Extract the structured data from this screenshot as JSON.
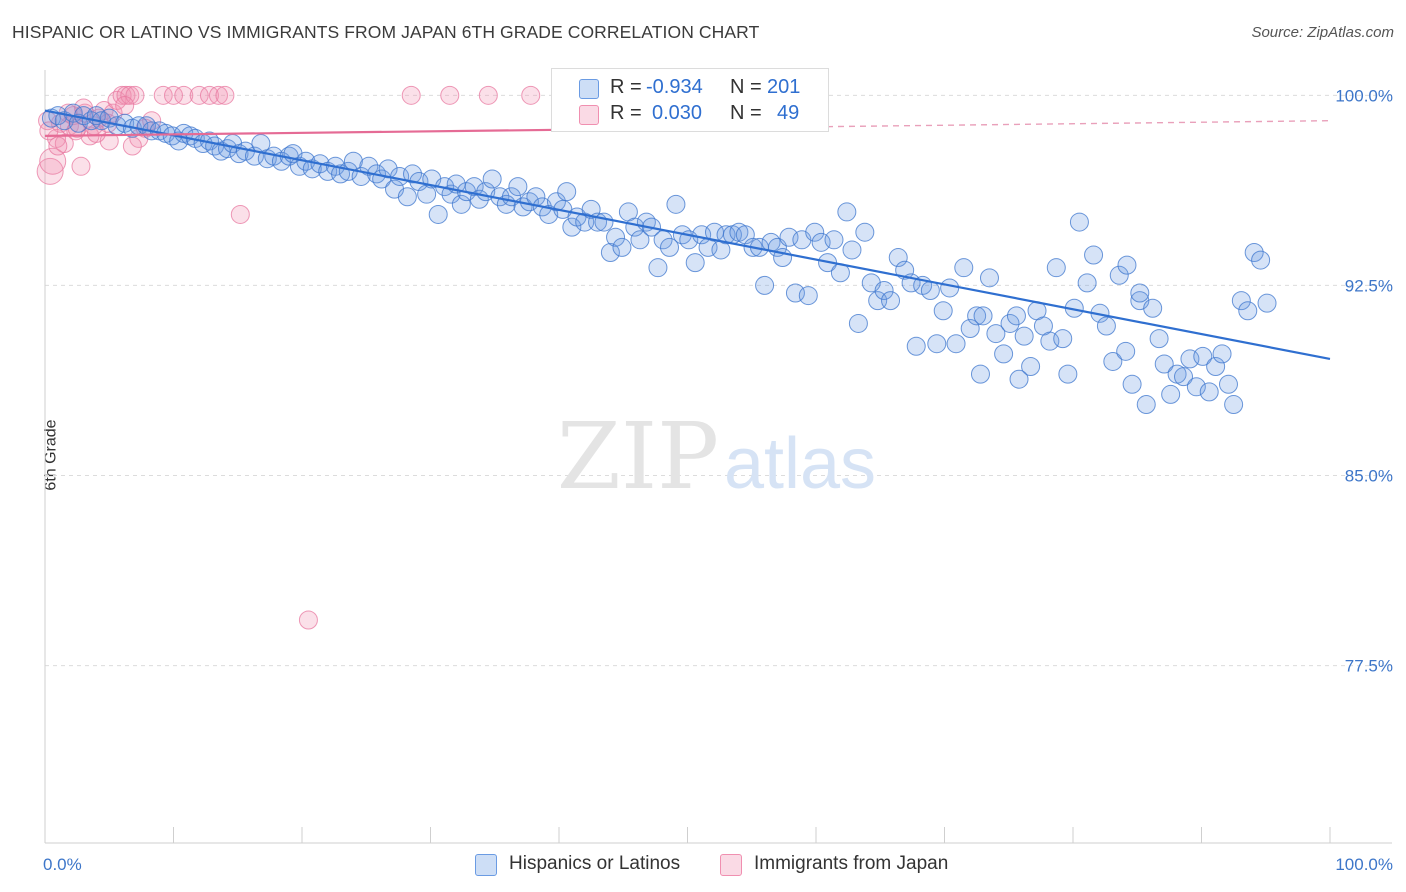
{
  "title": "HISPANIC OR LATINO VS IMMIGRANTS FROM JAPAN 6TH GRADE CORRELATION CHART",
  "source": "Source: ZipAtlas.com",
  "watermark": {
    "zip": "ZIP",
    "atlas": "atlas"
  },
  "legend": {
    "rows": [
      {
        "r_label": "R =",
        "r_value": "-0.934",
        "n_label": "N =",
        "n_value": "201",
        "color": "#6a9be3"
      },
      {
        "r_label": "R =",
        "r_value": "0.030",
        "n_label": "N =",
        "n_value": "49",
        "color": "#f08fb0"
      }
    ]
  },
  "chart_data": {
    "type": "scatter",
    "title": "HISPANIC OR LATINO VS IMMIGRANTS FROM JAPAN 6TH GRADE CORRELATION CHART",
    "xlabel": "",
    "ylabel": "6th Grade",
    "xlim": [
      0,
      100
    ],
    "ylim": [
      70.5,
      101.0
    ],
    "x_tick_labels": [
      "0.0%",
      "100.0%"
    ],
    "y_ticks": [
      77.5,
      85.0,
      92.5,
      100.0
    ],
    "y_tick_labels": [
      "77.5%",
      "85.0%",
      "92.5%",
      "100.0%"
    ],
    "grid": true,
    "legend_position": "bottom-center",
    "series": [
      {
        "name": "Hispanics or Latinos",
        "color": "#6a9be3",
        "r": -0.934,
        "n": 201,
        "trend": {
          "x": [
            0,
            100
          ],
          "y": [
            99.4,
            89.6
          ]
        },
        "points": [
          [
            0.5,
            99.1
          ],
          [
            1.0,
            99.2
          ],
          [
            1.5,
            99.0
          ],
          [
            2.2,
            99.3
          ],
          [
            2.6,
            98.9
          ],
          [
            3.0,
            99.2
          ],
          [
            3.6,
            99.0
          ],
          [
            4.0,
            99.2
          ],
          [
            4.4,
            99.0
          ],
          [
            5.0,
            99.1
          ],
          [
            5.6,
            98.8
          ],
          [
            6.2,
            98.9
          ],
          [
            6.8,
            98.7
          ],
          [
            7.3,
            98.8
          ],
          [
            7.9,
            98.8
          ],
          [
            8.3,
            98.6
          ],
          [
            8.9,
            98.6
          ],
          [
            9.4,
            98.5
          ],
          [
            9.9,
            98.4
          ],
          [
            10.4,
            98.2
          ],
          [
            10.8,
            98.5
          ],
          [
            11.3,
            98.4
          ],
          [
            11.7,
            98.3
          ],
          [
            12.3,
            98.1
          ],
          [
            12.8,
            98.2
          ],
          [
            13.2,
            98.0
          ],
          [
            13.7,
            97.8
          ],
          [
            14.2,
            97.9
          ],
          [
            14.6,
            98.1
          ],
          [
            15.1,
            97.7
          ],
          [
            15.6,
            97.8
          ],
          [
            16.3,
            97.6
          ],
          [
            16.8,
            98.1
          ],
          [
            17.3,
            97.5
          ],
          [
            17.8,
            97.6
          ],
          [
            18.4,
            97.4
          ],
          [
            19.0,
            97.6
          ],
          [
            19.3,
            97.7
          ],
          [
            19.8,
            97.2
          ],
          [
            20.3,
            97.4
          ],
          [
            20.8,
            97.1
          ],
          [
            21.4,
            97.3
          ],
          [
            22.0,
            97.0
          ],
          [
            22.6,
            97.2
          ],
          [
            23.0,
            96.9
          ],
          [
            23.6,
            97.0
          ],
          [
            24.0,
            97.4
          ],
          [
            24.6,
            96.8
          ],
          [
            25.2,
            97.2
          ],
          [
            25.8,
            96.9
          ],
          [
            26.2,
            96.7
          ],
          [
            26.7,
            97.1
          ],
          [
            27.2,
            96.3
          ],
          [
            27.6,
            96.8
          ],
          [
            28.2,
            96.0
          ],
          [
            28.6,
            96.9
          ],
          [
            29.1,
            96.6
          ],
          [
            29.7,
            96.1
          ],
          [
            30.1,
            96.7
          ],
          [
            30.6,
            95.3
          ],
          [
            31.1,
            96.4
          ],
          [
            31.6,
            96.1
          ],
          [
            32.0,
            96.5
          ],
          [
            32.4,
            95.7
          ],
          [
            32.8,
            96.2
          ],
          [
            33.4,
            96.4
          ],
          [
            33.8,
            95.9
          ],
          [
            34.3,
            96.2
          ],
          [
            34.8,
            96.7
          ],
          [
            35.4,
            96.0
          ],
          [
            35.9,
            95.7
          ],
          [
            36.3,
            96.0
          ],
          [
            36.8,
            96.4
          ],
          [
            37.2,
            95.6
          ],
          [
            37.7,
            95.8
          ],
          [
            38.2,
            96.0
          ],
          [
            38.7,
            95.6
          ],
          [
            39.2,
            95.3
          ],
          [
            39.8,
            95.8
          ],
          [
            40.3,
            95.5
          ],
          [
            40.6,
            96.2
          ],
          [
            41.0,
            94.8
          ],
          [
            41.4,
            95.2
          ],
          [
            42.0,
            95.0
          ],
          [
            42.5,
            95.5
          ],
          [
            43.0,
            95.0
          ],
          [
            43.5,
            95.0
          ],
          [
            44.0,
            93.8
          ],
          [
            44.4,
            94.4
          ],
          [
            44.9,
            94.0
          ],
          [
            45.4,
            95.4
          ],
          [
            45.9,
            94.8
          ],
          [
            46.3,
            94.3
          ],
          [
            46.8,
            95.0
          ],
          [
            47.2,
            94.8
          ],
          [
            47.7,
            93.2
          ],
          [
            48.1,
            94.3
          ],
          [
            48.6,
            94.0
          ],
          [
            49.1,
            95.7
          ],
          [
            49.6,
            94.5
          ],
          [
            50.1,
            94.3
          ],
          [
            50.6,
            93.4
          ],
          [
            51.1,
            94.5
          ],
          [
            51.6,
            94.0
          ],
          [
            52.1,
            94.6
          ],
          [
            52.6,
            93.9
          ],
          [
            53.0,
            94.5
          ],
          [
            53.5,
            94.5
          ],
          [
            54.0,
            94.6
          ],
          [
            54.5,
            94.5
          ],
          [
            55.1,
            94.0
          ],
          [
            55.6,
            94.0
          ],
          [
            56.0,
            92.5
          ],
          [
            56.5,
            94.2
          ],
          [
            57.0,
            94.0
          ],
          [
            57.4,
            93.6
          ],
          [
            57.9,
            94.4
          ],
          [
            58.4,
            92.2
          ],
          [
            58.9,
            94.3
          ],
          [
            59.4,
            92.1
          ],
          [
            59.9,
            94.6
          ],
          [
            60.4,
            94.2
          ],
          [
            60.9,
            93.4
          ],
          [
            61.4,
            94.3
          ],
          [
            61.9,
            93.0
          ],
          [
            62.4,
            95.4
          ],
          [
            62.8,
            93.9
          ],
          [
            63.3,
            91.0
          ],
          [
            63.8,
            94.6
          ],
          [
            64.3,
            92.6
          ],
          [
            64.8,
            91.9
          ],
          [
            65.3,
            92.3
          ],
          [
            65.8,
            91.9
          ],
          [
            66.4,
            93.6
          ],
          [
            66.9,
            93.1
          ],
          [
            67.4,
            92.6
          ],
          [
            67.8,
            90.1
          ],
          [
            68.3,
            92.5
          ],
          [
            68.9,
            92.3
          ],
          [
            69.4,
            90.2
          ],
          [
            69.9,
            91.5
          ],
          [
            70.4,
            92.4
          ],
          [
            70.9,
            90.2
          ],
          [
            71.5,
            93.2
          ],
          [
            72.0,
            90.8
          ],
          [
            72.5,
            91.3
          ],
          [
            73.0,
            91.3
          ],
          [
            73.5,
            92.8
          ],
          [
            74.0,
            90.6
          ],
          [
            74.6,
            89.8
          ],
          [
            75.1,
            91.0
          ],
          [
            75.6,
            91.3
          ],
          [
            76.2,
            90.5
          ],
          [
            76.7,
            89.3
          ],
          [
            77.2,
            91.5
          ],
          [
            77.7,
            90.9
          ],
          [
            78.2,
            90.3
          ],
          [
            78.7,
            93.2
          ],
          [
            79.2,
            90.4
          ],
          [
            79.6,
            89.0
          ],
          [
            80.1,
            91.6
          ],
          [
            80.5,
            95.0
          ],
          [
            81.1,
            92.6
          ],
          [
            81.6,
            93.7
          ],
          [
            82.1,
            91.4
          ],
          [
            82.6,
            90.9
          ],
          [
            83.1,
            89.5
          ],
          [
            83.6,
            92.9
          ],
          [
            84.1,
            89.9
          ],
          [
            84.6,
            88.6
          ],
          [
            85.2,
            91.9
          ],
          [
            85.7,
            87.8
          ],
          [
            86.2,
            91.6
          ],
          [
            86.7,
            90.4
          ],
          [
            87.1,
            89.4
          ],
          [
            87.6,
            88.2
          ],
          [
            88.1,
            89.0
          ],
          [
            88.6,
            88.9
          ],
          [
            89.1,
            89.6
          ],
          [
            89.6,
            88.5
          ],
          [
            90.1,
            89.7
          ],
          [
            90.6,
            88.3
          ],
          [
            91.1,
            89.3
          ],
          [
            91.6,
            89.8
          ],
          [
            92.1,
            88.6
          ],
          [
            92.5,
            87.8
          ],
          [
            93.1,
            91.9
          ],
          [
            93.6,
            91.5
          ],
          [
            94.1,
            93.8
          ],
          [
            94.6,
            93.5
          ],
          [
            95.1,
            91.8
          ],
          [
            85.2,
            92.2
          ],
          [
            84.2,
            93.3
          ],
          [
            75.8,
            88.8
          ],
          [
            72.8,
            89.0
          ]
        ]
      },
      {
        "name": "Immigrants from Japan",
        "color": "#f08fb0",
        "r": 0.03,
        "n": 49,
        "trend": {
          "x": [
            0,
            100
          ],
          "y": [
            98.4,
            99.0
          ]
        },
        "points": [
          [
            0.4,
            97.0
          ],
          [
            0.6,
            97.4
          ],
          [
            0.9,
            98.3
          ],
          [
            1.2,
            98.9
          ],
          [
            1.5,
            98.1
          ],
          [
            1.9,
            98.8
          ],
          [
            2.2,
            99.2
          ],
          [
            2.4,
            98.6
          ],
          [
            2.8,
            97.2
          ],
          [
            3.1,
            99.3
          ],
          [
            3.5,
            98.4
          ],
          [
            3.8,
            98.8
          ],
          [
            4.2,
            99.1
          ],
          [
            4.6,
            99.4
          ],
          [
            5.0,
            98.2
          ],
          [
            5.3,
            99.3
          ],
          [
            5.6,
            99.8
          ],
          [
            6.0,
            100.0
          ],
          [
            6.3,
            100.0
          ],
          [
            6.6,
            100.0
          ],
          [
            7.0,
            100.0
          ],
          [
            7.3,
            98.3
          ],
          [
            7.8,
            98.7
          ],
          [
            8.3,
            99.0
          ],
          [
            9.2,
            100.0
          ],
          [
            10.0,
            100.0
          ],
          [
            10.8,
            100.0
          ],
          [
            12.0,
            100.0
          ],
          [
            12.8,
            100.0
          ],
          [
            13.5,
            100.0
          ],
          [
            14.0,
            100.0
          ],
          [
            15.2,
            95.3
          ],
          [
            20.5,
            79.3
          ],
          [
            28.5,
            100.0
          ],
          [
            31.5,
            100.0
          ],
          [
            34.5,
            100.0
          ],
          [
            37.8,
            100.0
          ],
          [
            40.5,
            100.0
          ],
          [
            53.2,
            100.0
          ],
          [
            1.0,
            98.0
          ],
          [
            0.2,
            99.0
          ],
          [
            1.8,
            99.3
          ],
          [
            2.5,
            98.7
          ],
          [
            3.0,
            99.5
          ],
          [
            4.0,
            98.5
          ],
          [
            4.9,
            98.9
          ],
          [
            6.2,
            99.6
          ],
          [
            6.8,
            98.0
          ],
          [
            0.3,
            98.6
          ]
        ]
      }
    ]
  },
  "bottom_legend": [
    {
      "label": "Hispanics or Latinos",
      "color": "#6a9be3"
    },
    {
      "label": "Immigrants from Japan",
      "color": "#f08fb0"
    }
  ]
}
